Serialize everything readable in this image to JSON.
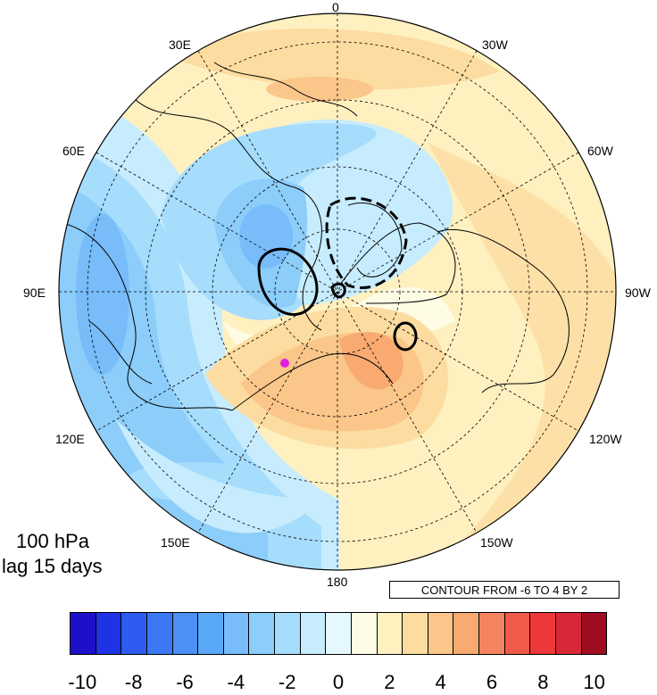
{
  "map": {
    "projection": "north polar stereographic",
    "longitude_labels": {
      "top": "0",
      "upper_left_1": "30E",
      "upper_right_1": "30W",
      "upper_left_2": "60E",
      "upper_right_2": "60W",
      "left": "90E",
      "right": "90W",
      "lower_left_2": "120E",
      "lower_right_2": "120W",
      "lower_left_1": "150E",
      "lower_right_1": "150W",
      "bottom": "180"
    },
    "title_lines": [
      "100 hPa",
      "lag 15 days"
    ],
    "contour_note": "CONTOUR FROM -6 TO 4 BY 2",
    "marker_color": "#e020e0"
  },
  "colorbar": {
    "colors": [
      "#1e10c8",
      "#1e32e6",
      "#2e5cf0",
      "#3c78f5",
      "#4a90f5",
      "#5aa8f8",
      "#78bcfa",
      "#8ccdfa",
      "#a6dcfc",
      "#c6ecfd",
      "#e6f8ff",
      "#fffce6",
      "#fff0c0",
      "#fcdca0",
      "#fac68a",
      "#f8aa70",
      "#f48460",
      "#f05a48",
      "#ec3838",
      "#d82838",
      "#a00c20"
    ],
    "labels": [
      "-10",
      "-8",
      "-6",
      "-4",
      "-2",
      "0",
      "2",
      "4",
      "6",
      "8",
      "10"
    ]
  }
}
